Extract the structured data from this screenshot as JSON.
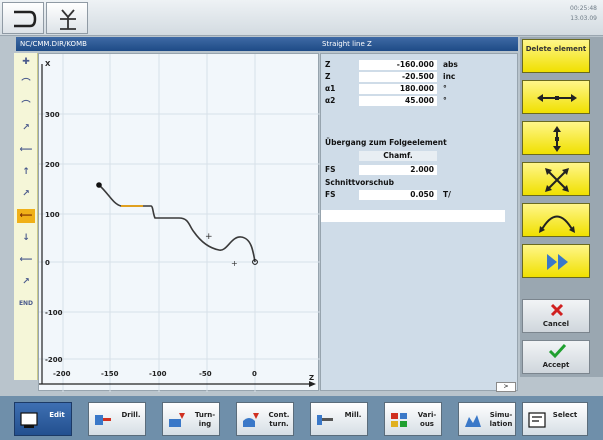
{
  "header": {
    "time_line1": "00:25:48",
    "time_line2": "13.03.09"
  },
  "titlebar": {
    "program": "NC/CMM.DIR/KOMB",
    "element": "Straight line Z"
  },
  "graph": {
    "z_label": "Z",
    "x_top_label": "X",
    "y_ticks": [
      "300",
      "200",
      "100",
      "0",
      "-100",
      "-200"
    ],
    "x_ticks": [
      "-200",
      "-150",
      "-100",
      "-50",
      "0"
    ]
  },
  "params": {
    "rows": [
      {
        "label": "Z",
        "value": "-160.000",
        "unit": "abs"
      },
      {
        "label": "Z",
        "value": "-20.500",
        "unit": "inc"
      },
      {
        "label": "α1",
        "value": "180.000",
        "unit": "°"
      },
      {
        "label": "α2",
        "value": "45.000",
        "unit": "°"
      }
    ],
    "transition_title": "Übergang zum Folgeelement",
    "transition_choice": "Chamf.",
    "fs_label": "FS",
    "fs_value": "2.000",
    "cutting_title": "Schnittvorschub",
    "fs2_label": "FS",
    "fs2_value": "0.050",
    "fs2_unit": "T/"
  },
  "right_softkeys": {
    "delete_label": "Delete element",
    "cancel_label": "Cancel",
    "accept_label": "Accept"
  },
  "scroll_hint": ">",
  "bottom_softkeys": [
    {
      "label": "Edit"
    },
    {
      "label": "Drill."
    },
    {
      "label": "Turn-ing"
    },
    {
      "label": "Cont. turn."
    },
    {
      "label": "Mill."
    },
    {
      "label": "Vari-ous"
    },
    {
      "label": "Simu-lation"
    },
    {
      "label": "Select"
    }
  ]
}
